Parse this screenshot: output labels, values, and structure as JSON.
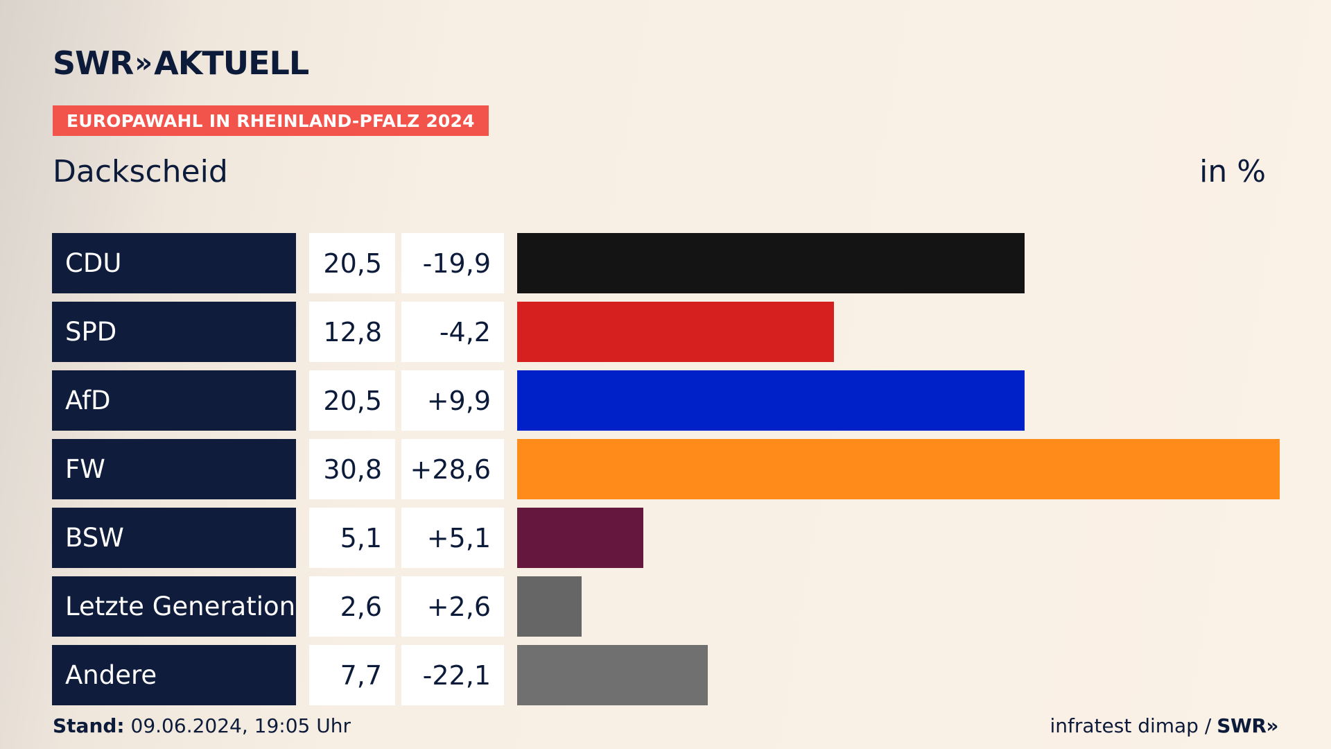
{
  "header": {
    "logo_text": "SWR",
    "logo_chevrons": "»",
    "logo_suffix": "AKTUELL",
    "election": "EUROPAWAHL IN RHEINLAND-PFALZ 2024",
    "location": "Dackscheid",
    "unit": "in %"
  },
  "chart_data": {
    "type": "bar",
    "orientation": "horizontal",
    "categories": [
      "CDU",
      "SPD",
      "AfD",
      "FW",
      "BSW",
      "Letzte Generation",
      "Andere"
    ],
    "values": [
      20.5,
      12.8,
      20.5,
      30.8,
      5.1,
      2.6,
      7.7
    ],
    "value_labels": [
      "20,5",
      "12,8",
      "20,5",
      "30,8",
      "5,1",
      "2,6",
      "7,7"
    ],
    "diff_labels": [
      "-19,9",
      "-4,2",
      "+9,9",
      "+28,6",
      "+5,1",
      "+2,6",
      "-22,1"
    ],
    "colors": [
      "#141414",
      "#d6201f",
      "#0021c8",
      "#ff8c1a",
      "#66173d",
      "#666666",
      "#707070"
    ],
    "xlim": [
      0,
      30.8
    ]
  },
  "footer": {
    "stand_label": "Stand:",
    "stand_value": "09.06.2024, 19:05 Uhr",
    "source": "infratest dimap /",
    "source_logo": "SWR»"
  }
}
